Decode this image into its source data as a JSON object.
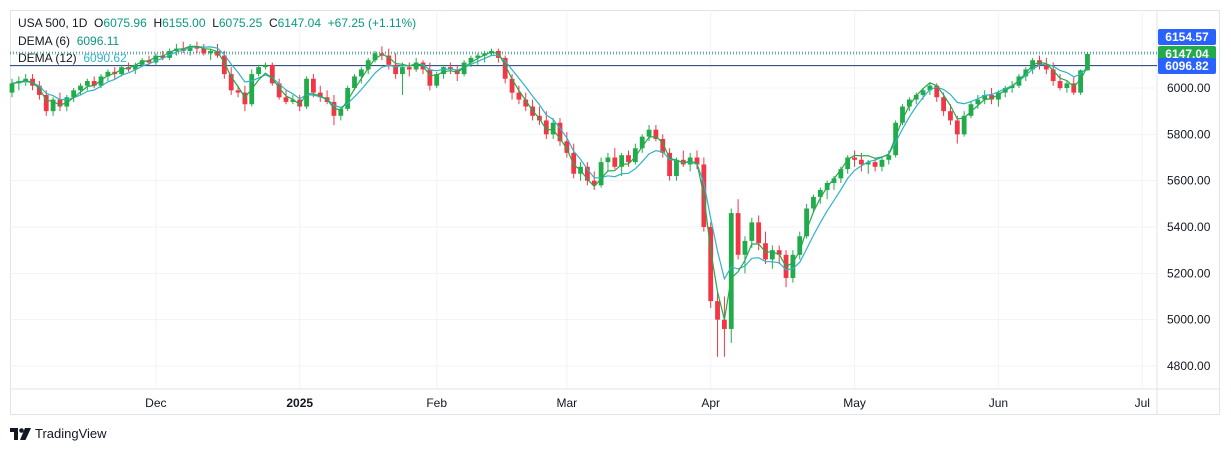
{
  "legend": {
    "symbol": "USA 500, 1D",
    "open_label": "O",
    "open": "6075.96",
    "high_label": "H",
    "high": "6155.00",
    "low_label": "L",
    "low": "6075.25",
    "close_label": "C",
    "close": "6147.04",
    "change": "+67.25 (+1.11%)",
    "dema6_label": "DEMA (6)",
    "dema6_value": "6096.11",
    "dema12_label": "DEMA (12)",
    "dema12_value": "6090.62"
  },
  "price_tags": {
    "high": "6154.57",
    "close": "6147.04",
    "dema": "6096.82"
  },
  "brand": {
    "name": "TradingView"
  },
  "colors": {
    "up": "#22ab4a",
    "down": "#f23645",
    "dema6": "#22ab4a",
    "dema12": "#2eb3c6",
    "grid": "#f0f3fa",
    "tag_blue": "#2962ff"
  },
  "chart_data": {
    "type": "candlestick",
    "y_ticks": [
      "6000.00",
      "5800.00",
      "5600.00",
      "5400.00",
      "5200.00",
      "5000.00",
      "4800.00"
    ],
    "y_range": [
      4720,
      6240
    ],
    "x_ticks": [
      {
        "label": "Dec",
        "index": 21
      },
      {
        "label": "2025",
        "index": 42
      },
      {
        "label": "Feb",
        "index": 62
      },
      {
        "label": "Mar",
        "index": 81
      },
      {
        "label": "Apr",
        "index": 102
      },
      {
        "label": "May",
        "index": 123
      },
      {
        "label": "Jun",
        "index": 144
      },
      {
        "label": "Jul",
        "index": 165
      }
    ],
    "series": [
      {
        "name": "DEMA (6)",
        "values": []
      },
      {
        "name": "DEMA (12)",
        "values": []
      }
    ],
    "candles": [
      [
        5980,
        6040,
        5960,
        6020
      ],
      [
        6020,
        6050,
        5990,
        6030
      ],
      [
        6030,
        6060,
        6010,
        6040
      ],
      [
        6040,
        6060,
        5990,
        6010
      ],
      [
        6010,
        6030,
        5950,
        5970
      ],
      [
        5970,
        5990,
        5880,
        5900
      ],
      [
        5900,
        5960,
        5880,
        5950
      ],
      [
        5950,
        5980,
        5900,
        5920
      ],
      [
        5920,
        5970,
        5900,
        5960
      ],
      [
        5960,
        6000,
        5940,
        5990
      ],
      [
        5990,
        6020,
        5970,
        6010
      ],
      [
        6010,
        6040,
        5990,
        6030
      ],
      [
        6030,
        6050,
        6000,
        6010
      ],
      [
        6010,
        6060,
        6000,
        6050
      ],
      [
        6050,
        6080,
        6030,
        6070
      ],
      [
        6070,
        6090,
        6040,
        6060
      ],
      [
        6060,
        6100,
        6050,
        6090
      ],
      [
        6090,
        6110,
        6070,
        6080
      ],
      [
        6080,
        6110,
        6060,
        6100
      ],
      [
        6100,
        6130,
        6090,
        6120
      ],
      [
        6120,
        6140,
        6100,
        6110
      ],
      [
        6110,
        6150,
        6100,
        6140
      ],
      [
        6140,
        6160,
        6120,
        6130
      ],
      [
        6130,
        6170,
        6120,
        6160
      ],
      [
        6160,
        6190,
        6140,
        6170
      ],
      [
        6170,
        6200,
        6150,
        6160
      ],
      [
        6160,
        6190,
        6140,
        6180
      ],
      [
        6180,
        6200,
        6150,
        6170
      ],
      [
        6170,
        6190,
        6140,
        6150
      ],
      [
        6150,
        6170,
        6120,
        6160
      ],
      [
        6160,
        6190,
        6130,
        6140
      ],
      [
        6140,
        6160,
        6040,
        6060
      ],
      [
        6060,
        6090,
        5970,
        5990
      ],
      [
        5990,
        6010,
        5960,
        5980
      ],
      [
        5980,
        6010,
        5900,
        5930
      ],
      [
        5930,
        6080,
        5920,
        6060
      ],
      [
        6060,
        6100,
        6050,
        6090
      ],
      [
        6090,
        6110,
        6080,
        6100
      ],
      [
        6100,
        6110,
        6010,
        6020
      ],
      [
        6020,
        6040,
        5950,
        5960
      ],
      [
        5960,
        5990,
        5930,
        5940
      ],
      [
        5940,
        5970,
        5930,
        5950
      ],
      [
        5950,
        5970,
        5900,
        5920
      ],
      [
        5920,
        6050,
        5910,
        6040
      ],
      [
        6040,
        6060,
        5960,
        5980
      ],
      [
        5980,
        6010,
        5940,
        5960
      ],
      [
        5960,
        5990,
        5930,
        5940
      ],
      [
        5940,
        5970,
        5840,
        5880
      ],
      [
        5880,
        5920,
        5860,
        5910
      ],
      [
        5910,
        6010,
        5900,
        6000
      ],
      [
        6000,
        6060,
        5990,
        6050
      ],
      [
        6050,
        6090,
        6020,
        6080
      ],
      [
        6080,
        6130,
        6060,
        6120
      ],
      [
        6120,
        6160,
        6110,
        6150
      ],
      [
        6150,
        6180,
        6120,
        6140
      ],
      [
        6140,
        6170,
        6080,
        6100
      ],
      [
        6100,
        6150,
        6040,
        6060
      ],
      [
        6060,
        6110,
        5970,
        6090
      ],
      [
        6090,
        6110,
        6050,
        6080
      ],
      [
        6080,
        6130,
        6070,
        6110
      ],
      [
        6110,
        6120,
        6060,
        6080
      ],
      [
        6080,
        6110,
        5990,
        6010
      ],
      [
        6010,
        6070,
        6000,
        6060
      ],
      [
        6060,
        6100,
        6040,
        6090
      ],
      [
        6090,
        6110,
        6060,
        6080
      ],
      [
        6080,
        6100,
        6030,
        6060
      ],
      [
        6060,
        6120,
        6050,
        6110
      ],
      [
        6110,
        6140,
        6090,
        6130
      ],
      [
        6130,
        6150,
        6100,
        6140
      ],
      [
        6140,
        6160,
        6110,
        6150
      ],
      [
        6150,
        6170,
        6140,
        6160
      ],
      [
        6160,
        6170,
        6110,
        6130
      ],
      [
        6130,
        6140,
        6020,
        6040
      ],
      [
        6040,
        6060,
        5950,
        5980
      ],
      [
        5980,
        6010,
        5930,
        5950
      ],
      [
        5950,
        5980,
        5900,
        5920
      ],
      [
        5920,
        5950,
        5860,
        5880
      ],
      [
        5880,
        5920,
        5840,
        5860
      ],
      [
        5860,
        5900,
        5780,
        5800
      ],
      [
        5800,
        5870,
        5780,
        5850
      ],
      [
        5850,
        5870,
        5750,
        5770
      ],
      [
        5770,
        5810,
        5700,
        5720
      ],
      [
        5720,
        5760,
        5610,
        5630
      ],
      [
        5630,
        5680,
        5600,
        5660
      ],
      [
        5660,
        5680,
        5580,
        5600
      ],
      [
        5600,
        5640,
        5560,
        5580
      ],
      [
        5580,
        5700,
        5570,
        5680
      ],
      [
        5680,
        5720,
        5640,
        5700
      ],
      [
        5700,
        5740,
        5650,
        5660
      ],
      [
        5660,
        5720,
        5620,
        5710
      ],
      [
        5710,
        5730,
        5660,
        5680
      ],
      [
        5680,
        5760,
        5670,
        5740
      ],
      [
        5740,
        5800,
        5720,
        5790
      ],
      [
        5790,
        5840,
        5770,
        5820
      ],
      [
        5820,
        5840,
        5770,
        5780
      ],
      [
        5780,
        5800,
        5700,
        5720
      ],
      [
        5720,
        5740,
        5600,
        5620
      ],
      [
        5620,
        5700,
        5600,
        5690
      ],
      [
        5690,
        5730,
        5660,
        5670
      ],
      [
        5670,
        5720,
        5640,
        5700
      ],
      [
        5700,
        5730,
        5650,
        5670
      ],
      [
        5670,
        5700,
        5380,
        5400
      ],
      [
        5400,
        5420,
        5050,
        5080
      ],
      [
        5080,
        5120,
        4840,
        5000
      ],
      [
        5000,
        5100,
        4840,
        4960
      ],
      [
        4960,
        5480,
        4900,
        5460
      ],
      [
        5460,
        5520,
        5260,
        5280
      ],
      [
        5280,
        5360,
        5200,
        5340
      ],
      [
        5340,
        5440,
        5310,
        5420
      ],
      [
        5420,
        5450,
        5300,
        5330
      ],
      [
        5330,
        5380,
        5240,
        5260
      ],
      [
        5260,
        5320,
        5220,
        5300
      ],
      [
        5300,
        5320,
        5240,
        5280
      ],
      [
        5280,
        5300,
        5140,
        5180
      ],
      [
        5180,
        5300,
        5160,
        5280
      ],
      [
        5280,
        5380,
        5260,
        5360
      ],
      [
        5360,
        5500,
        5350,
        5480
      ],
      [
        5480,
        5540,
        5460,
        5530
      ],
      [
        5530,
        5570,
        5500,
        5560
      ],
      [
        5560,
        5600,
        5520,
        5590
      ],
      [
        5590,
        5620,
        5560,
        5610
      ],
      [
        5610,
        5660,
        5590,
        5650
      ],
      [
        5650,
        5710,
        5630,
        5700
      ],
      [
        5700,
        5730,
        5660,
        5690
      ],
      [
        5690,
        5720,
        5640,
        5670
      ],
      [
        5670,
        5690,
        5630,
        5680
      ],
      [
        5680,
        5700,
        5640,
        5660
      ],
      [
        5660,
        5700,
        5640,
        5690
      ],
      [
        5690,
        5730,
        5670,
        5710
      ],
      [
        5710,
        5860,
        5700,
        5850
      ],
      [
        5850,
        5930,
        5840,
        5920
      ],
      [
        5920,
        5960,
        5900,
        5950
      ],
      [
        5950,
        5980,
        5930,
        5970
      ],
      [
        5970,
        6000,
        5950,
        5990
      ],
      [
        5990,
        6020,
        5970,
        6010
      ],
      [
        6010,
        6020,
        5940,
        5960
      ],
      [
        5960,
        5980,
        5880,
        5900
      ],
      [
        5900,
        5930,
        5840,
        5860
      ],
      [
        5860,
        5880,
        5760,
        5800
      ],
      [
        5800,
        5900,
        5790,
        5880
      ],
      [
        5880,
        5940,
        5870,
        5930
      ],
      [
        5930,
        5970,
        5910,
        5950
      ],
      [
        5950,
        5990,
        5930,
        5970
      ],
      [
        5970,
        6000,
        5930,
        5950
      ],
      [
        5950,
        5990,
        5920,
        5980
      ],
      [
        5980,
        6010,
        5960,
        6000
      ],
      [
        6000,
        6030,
        5980,
        6010
      ],
      [
        6010,
        6060,
        6000,
        6050
      ],
      [
        6050,
        6090,
        6030,
        6080
      ],
      [
        6080,
        6130,
        6060,
        6120
      ],
      [
        6120,
        6140,
        6080,
        6100
      ],
      [
        6100,
        6130,
        6060,
        6080
      ],
      [
        6080,
        6110,
        6010,
        6030
      ],
      [
        6030,
        6060,
        5990,
        6000
      ],
      [
        6000,
        6030,
        5980,
        6020
      ],
      [
        6020,
        6050,
        5970,
        5980
      ],
      [
        5980,
        6080,
        5970,
        6076
      ],
      [
        6076,
        6155,
        6075,
        6147
      ]
    ]
  }
}
